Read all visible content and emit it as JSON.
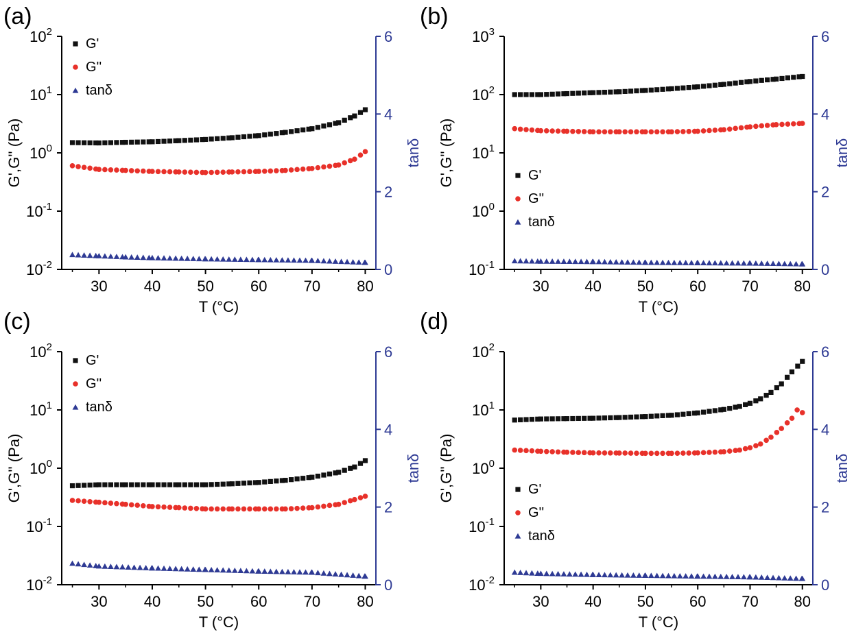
{
  "colors": {
    "gp": "#111111",
    "gpp": "#e8312a",
    "tand": "#2e3a94",
    "axis": "#000000",
    "right_axis": "#2e3a94"
  },
  "chart_data": [
    {
      "type": "scatter",
      "panel": "(a)",
      "xlabel": "T (°C)",
      "ylabel": "G',G'' (Pa)",
      "y2label": "tanδ",
      "xlim": [
        23,
        82
      ],
      "xticks": [
        30,
        40,
        50,
        60,
        70,
        80
      ],
      "yscale": "log",
      "ylim_exp": [
        -2,
        2
      ],
      "yticks": [
        {
          "base": "10",
          "exp": "-2"
        },
        {
          "base": "10",
          "exp": "-1"
        },
        {
          "base": "10",
          "exp": "0"
        },
        {
          "base": "10",
          "exp": "1"
        },
        {
          "base": "10",
          "exp": "2"
        }
      ],
      "y2lim": [
        0,
        6
      ],
      "y2ticks": [
        "0",
        "2",
        "4",
        "6"
      ],
      "legend": {
        "position": "top-left",
        "entries": [
          "G'",
          "G''",
          "tanδ"
        ]
      },
      "series": [
        {
          "name": "G'",
          "marker": "square",
          "axis": "left",
          "x": [
            25,
            30,
            35,
            40,
            45,
            50,
            55,
            60,
            65,
            70,
            75,
            78,
            80
          ],
          "y": [
            1.5,
            1.48,
            1.52,
            1.55,
            1.62,
            1.7,
            1.82,
            1.98,
            2.25,
            2.6,
            3.3,
            4.3,
            5.5
          ]
        },
        {
          "name": "G''",
          "marker": "circle",
          "axis": "left",
          "x": [
            25,
            30,
            35,
            40,
            45,
            50,
            55,
            60,
            65,
            70,
            75,
            78,
            80
          ],
          "y": [
            0.6,
            0.52,
            0.5,
            0.48,
            0.47,
            0.46,
            0.47,
            0.48,
            0.5,
            0.54,
            0.62,
            0.78,
            1.05
          ]
        },
        {
          "name": "tanδ",
          "marker": "triangle",
          "axis": "right",
          "x": [
            25,
            30,
            35,
            40,
            50,
            60,
            70,
            80
          ],
          "y": [
            0.38,
            0.35,
            0.32,
            0.3,
            0.27,
            0.25,
            0.23,
            0.18
          ]
        }
      ]
    },
    {
      "type": "scatter",
      "panel": "(b)",
      "xlabel": "T (°C)",
      "ylabel": "G',G'' (Pa)",
      "y2label": "tanδ",
      "xlim": [
        23,
        82
      ],
      "xticks": [
        30,
        40,
        50,
        60,
        70,
        80
      ],
      "yscale": "log",
      "ylim_exp": [
        -1,
        3
      ],
      "yticks": [
        {
          "base": "10",
          "exp": "-1"
        },
        {
          "base": "10",
          "exp": "0"
        },
        {
          "base": "10",
          "exp": "1"
        },
        {
          "base": "10",
          "exp": "2"
        },
        {
          "base": "10",
          "exp": "3"
        }
      ],
      "y2lim": [
        0,
        6
      ],
      "y2ticks": [
        "0",
        "2",
        "4",
        "6"
      ],
      "legend": {
        "position": "center-left",
        "entries": [
          "G'",
          "G''",
          "tanδ"
        ]
      },
      "series": [
        {
          "name": "G'",
          "marker": "square",
          "axis": "left",
          "x": [
            25,
            30,
            35,
            40,
            45,
            50,
            55,
            60,
            65,
            70,
            75,
            80
          ],
          "y": [
            100,
            100,
            104,
            108,
            112,
            118,
            126,
            136,
            150,
            168,
            185,
            205
          ]
        },
        {
          "name": "G''",
          "marker": "circle",
          "axis": "left",
          "x": [
            25,
            30,
            35,
            40,
            45,
            50,
            55,
            60,
            65,
            70,
            75,
            80
          ],
          "y": [
            26,
            24,
            23.5,
            23,
            23,
            23,
            23,
            23.5,
            25,
            28,
            30.5,
            32
          ]
        },
        {
          "name": "tanδ",
          "marker": "triangle",
          "axis": "right",
          "x": [
            25,
            30,
            40,
            50,
            60,
            70,
            80
          ],
          "y": [
            0.22,
            0.21,
            0.2,
            0.18,
            0.17,
            0.16,
            0.14
          ]
        }
      ]
    },
    {
      "type": "scatter",
      "panel": "(c)",
      "xlabel": "T (°C)",
      "ylabel": "G',G'' (Pa)",
      "y2label": "tanδ",
      "xlim": [
        23,
        82
      ],
      "xticks": [
        30,
        40,
        50,
        60,
        70,
        80
      ],
      "yscale": "log",
      "ylim_exp": [
        -2,
        2
      ],
      "yticks": [
        {
          "base": "10",
          "exp": "-2"
        },
        {
          "base": "10",
          "exp": "-1"
        },
        {
          "base": "10",
          "exp": "0"
        },
        {
          "base": "10",
          "exp": "1"
        },
        {
          "base": "10",
          "exp": "2"
        }
      ],
      "y2lim": [
        0,
        6
      ],
      "y2ticks": [
        "0",
        "2",
        "4",
        "6"
      ],
      "legend": {
        "position": "top-left",
        "entries": [
          "G'",
          "G''",
          "tanδ"
        ]
      },
      "series": [
        {
          "name": "G'",
          "marker": "square",
          "axis": "left",
          "x": [
            25,
            30,
            35,
            40,
            45,
            50,
            55,
            60,
            65,
            70,
            75,
            78,
            80
          ],
          "y": [
            0.5,
            0.52,
            0.52,
            0.52,
            0.52,
            0.52,
            0.54,
            0.57,
            0.62,
            0.7,
            0.85,
            1.05,
            1.35
          ]
        },
        {
          "name": "G''",
          "marker": "circle",
          "axis": "left",
          "x": [
            25,
            30,
            35,
            40,
            45,
            50,
            55,
            60,
            65,
            70,
            75,
            78,
            80
          ],
          "y": [
            0.28,
            0.26,
            0.24,
            0.22,
            0.21,
            0.2,
            0.2,
            0.2,
            0.2,
            0.21,
            0.24,
            0.29,
            0.33
          ]
        },
        {
          "name": "tanδ",
          "marker": "triangle",
          "axis": "right",
          "x": [
            25,
            30,
            40,
            50,
            60,
            70,
            80
          ],
          "y": [
            0.55,
            0.48,
            0.43,
            0.39,
            0.35,
            0.32,
            0.22
          ]
        }
      ]
    },
    {
      "type": "scatter",
      "panel": "(d)",
      "xlabel": "T (°C)",
      "ylabel": "G',G'' (Pa)",
      "y2label": "tanδ",
      "xlim": [
        23,
        82
      ],
      "xticks": [
        30,
        40,
        50,
        60,
        70,
        80
      ],
      "yscale": "log",
      "ylim_exp": [
        -2,
        2
      ],
      "yticks": [
        {
          "base": "10",
          "exp": "-2"
        },
        {
          "base": "10",
          "exp": "-1"
        },
        {
          "base": "10",
          "exp": "0"
        },
        {
          "base": "10",
          "exp": "1"
        },
        {
          "base": "10",
          "exp": "2"
        }
      ],
      "y2lim": [
        0,
        6
      ],
      "y2ticks": [
        "0",
        "2",
        "4",
        "6"
      ],
      "legend": {
        "position": "center-left",
        "entries": [
          "G'",
          "G''",
          "tanδ"
        ]
      },
      "series": [
        {
          "name": "G'",
          "marker": "square",
          "axis": "left",
          "x": [
            25,
            30,
            35,
            40,
            45,
            50,
            55,
            60,
            65,
            68,
            70,
            72,
            74,
            76,
            78,
            80
          ],
          "y": [
            6.7,
            7.0,
            7.1,
            7.2,
            7.4,
            7.7,
            8.1,
            8.9,
            10.2,
            11.5,
            13,
            15.5,
            20,
            28,
            45,
            68
          ]
        },
        {
          "name": "G''",
          "marker": "circle",
          "axis": "left",
          "x": [
            25,
            30,
            35,
            40,
            45,
            50,
            55,
            60,
            65,
            68,
            70,
            72,
            74,
            76,
            78,
            79,
            80
          ],
          "y": [
            2.05,
            1.95,
            1.88,
            1.83,
            1.82,
            1.8,
            1.8,
            1.83,
            1.92,
            2.05,
            2.25,
            2.6,
            3.4,
            4.8,
            7.2,
            10,
            9.0
          ]
        },
        {
          "name": "tanδ",
          "marker": "triangle",
          "axis": "right",
          "x": [
            25,
            30,
            40,
            50,
            60,
            70,
            80
          ],
          "y": [
            0.32,
            0.29,
            0.26,
            0.24,
            0.22,
            0.2,
            0.16
          ]
        }
      ]
    }
  ]
}
